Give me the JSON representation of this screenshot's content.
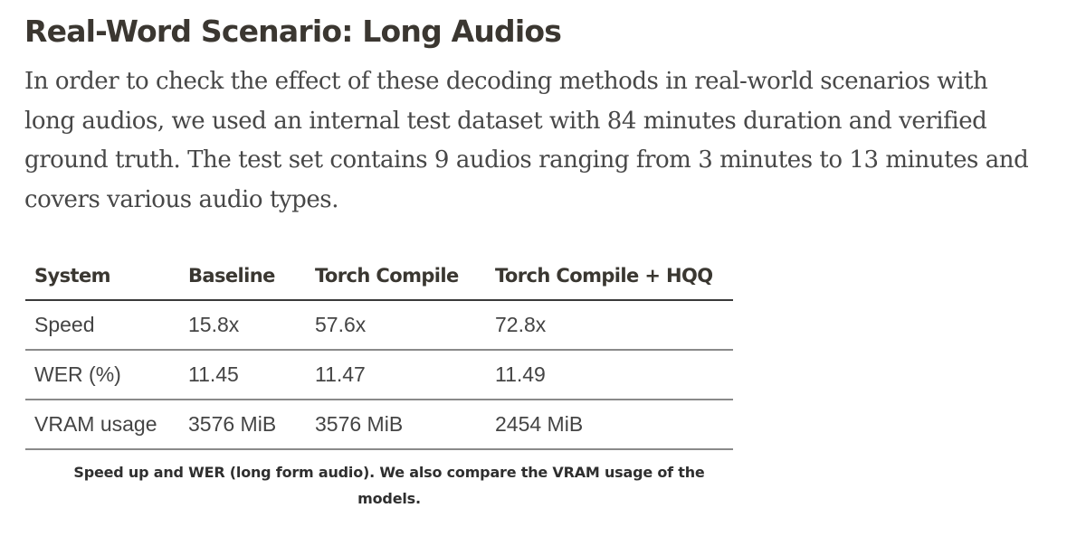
{
  "heading": "Real-Word Scenario: Long Audios",
  "paragraph_lines": [
    "In order to check the effect of these decoding methods in real-world scenarios with",
    "long audios, we used an internal test dataset with 84 minutes duration and verified",
    "ground truth. The test set contains 9 audios ranging from 3 minutes to 13 minutes and",
    "covers various audio types."
  ],
  "table": {
    "headers": [
      "System",
      "Baseline",
      "Torch Compile",
      "Torch Compile + HQQ"
    ],
    "rows": [
      [
        "Speed",
        "15.8x",
        "57.6x",
        "72.8x"
      ],
      [
        "WER (%)",
        "11.45",
        "11.47",
        "11.49"
      ],
      [
        "VRAM usage",
        "3576 MiB",
        "3576 MiB",
        "2454 MiB"
      ]
    ]
  },
  "caption_lines": [
    "Speed up and WER (long form audio). We also compare the VRAM usage of the",
    "models."
  ]
}
